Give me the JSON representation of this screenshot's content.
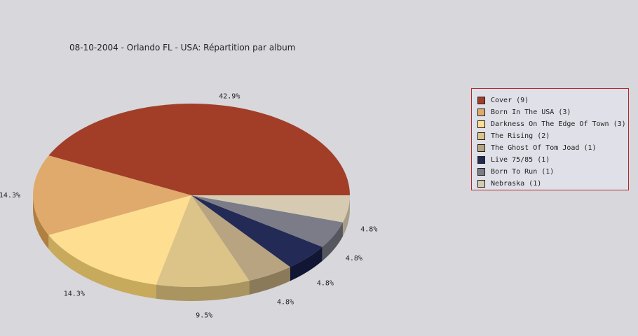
{
  "chart_title": "08-10-2004 - Orlando FL - USA:  Répartition par album",
  "chart_data": {
    "type": "pie",
    "title": "08-10-2004 - Orlando FL - USA:  Répartition par album",
    "legend_position": "right",
    "slices": [
      {
        "label": "Cover (9)",
        "value": 9,
        "percent_label": "42.9%",
        "color": "#a23e28",
        "side_color": "#7a0c00"
      },
      {
        "label": "Born In The USA (3)",
        "value": 3,
        "percent_label": "14.3%",
        "color": "#e0aa6c",
        "side_color": "#b08040"
      },
      {
        "label": "Darkness On The Edge Of Town (3)",
        "value": 3,
        "percent_label": "14.3%",
        "color": "#fede90",
        "side_color": "#c8aa5c"
      },
      {
        "label": "The Rising (2)",
        "value": 2,
        "percent_label": "9.5%",
        "color": "#dcc388",
        "side_color": "#aa9460"
      },
      {
        "label": "The Ghost Of Tom Joad (1)",
        "value": 1,
        "percent_label": "4.8%",
        "color": "#b8a480",
        "side_color": "#8a7a5a"
      },
      {
        "label": "Live 75/85 (1)",
        "value": 1,
        "percent_label": "4.8%",
        "color": "#222a55",
        "side_color": "#101633"
      },
      {
        "label": "Born To Run (1)",
        "value": 1,
        "percent_label": "4.8%",
        "color": "#7b7c88",
        "side_color": "#55565e"
      },
      {
        "label": "Nebraska (1)",
        "value": 1,
        "percent_label": "4.8%",
        "color": "#d6cbb2",
        "side_color": "#a89e88"
      }
    ]
  }
}
